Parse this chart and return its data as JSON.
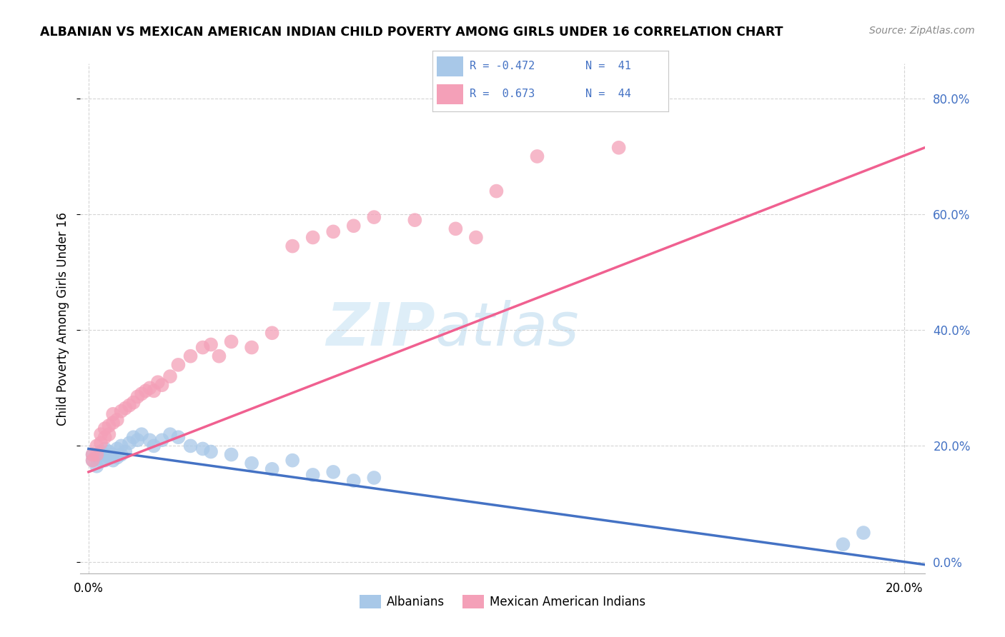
{
  "title": "ALBANIAN VS MEXICAN AMERICAN INDIAN CHILD POVERTY AMONG GIRLS UNDER 16 CORRELATION CHART",
  "source": "Source: ZipAtlas.com",
  "ylabel": "Child Poverty Among Girls Under 16",
  "albanian_color": "#a8c8e8",
  "mexican_color": "#f4a0b8",
  "albanian_line_color": "#4472c4",
  "mexican_line_color": "#f06090",
  "watermark_color": "#cce8f4",
  "grid_color": "#d0d0d0",
  "right_tick_color": "#4472c4",
  "albanians_x": [
    0.001,
    0.001,
    0.002,
    0.002,
    0.003,
    0.003,
    0.003,
    0.004,
    0.004,
    0.004,
    0.005,
    0.005,
    0.006,
    0.006,
    0.007,
    0.007,
    0.008,
    0.008,
    0.009,
    0.01,
    0.011,
    0.012,
    0.013,
    0.015,
    0.016,
    0.018,
    0.02,
    0.022,
    0.025,
    0.028,
    0.03,
    0.035,
    0.04,
    0.045,
    0.05,
    0.055,
    0.06,
    0.065,
    0.07,
    0.185,
    0.19
  ],
  "albanians_y": [
    0.175,
    0.185,
    0.165,
    0.18,
    0.175,
    0.185,
    0.19,
    0.175,
    0.185,
    0.195,
    0.18,
    0.19,
    0.175,
    0.185,
    0.18,
    0.195,
    0.185,
    0.2,
    0.19,
    0.205,
    0.215,
    0.21,
    0.22,
    0.21,
    0.2,
    0.21,
    0.22,
    0.215,
    0.2,
    0.195,
    0.19,
    0.185,
    0.17,
    0.16,
    0.175,
    0.15,
    0.155,
    0.14,
    0.145,
    0.03,
    0.05
  ],
  "mexicans_x": [
    0.001,
    0.001,
    0.002,
    0.002,
    0.003,
    0.003,
    0.004,
    0.004,
    0.005,
    0.005,
    0.006,
    0.006,
    0.007,
    0.008,
    0.009,
    0.01,
    0.011,
    0.012,
    0.013,
    0.014,
    0.015,
    0.016,
    0.017,
    0.018,
    0.02,
    0.022,
    0.025,
    0.028,
    0.03,
    0.032,
    0.035,
    0.04,
    0.045,
    0.05,
    0.055,
    0.06,
    0.065,
    0.07,
    0.08,
    0.09,
    0.095,
    0.1,
    0.11,
    0.13
  ],
  "mexicans_y": [
    0.175,
    0.185,
    0.185,
    0.2,
    0.205,
    0.22,
    0.215,
    0.23,
    0.22,
    0.235,
    0.24,
    0.255,
    0.245,
    0.26,
    0.265,
    0.27,
    0.275,
    0.285,
    0.29,
    0.295,
    0.3,
    0.295,
    0.31,
    0.305,
    0.32,
    0.34,
    0.355,
    0.37,
    0.375,
    0.355,
    0.38,
    0.37,
    0.395,
    0.545,
    0.56,
    0.57,
    0.58,
    0.595,
    0.59,
    0.575,
    0.56,
    0.64,
    0.7,
    0.715
  ],
  "xlim_min": -0.002,
  "xlim_max": 0.205,
  "ylim_min": -0.02,
  "ylim_max": 0.86,
  "xticks": [
    0.0,
    0.2
  ],
  "yticks": [
    0.0,
    0.2,
    0.4,
    0.6,
    0.8
  ],
  "legend_R1": "R = -0.472",
  "legend_R2": "R =  0.673",
  "legend_N1": "N =  41",
  "legend_N2": "N =  44",
  "legend_label1": "Albanians",
  "legend_label2": "Mexican American Indians",
  "alb_line_x0": 0.0,
  "alb_line_x1": 0.205,
  "alb_line_y0": 0.195,
  "alb_line_y1": -0.005,
  "mex_line_x0": 0.0,
  "mex_line_x1": 0.205,
  "mex_line_y0": 0.155,
  "mex_line_y1": 0.715
}
